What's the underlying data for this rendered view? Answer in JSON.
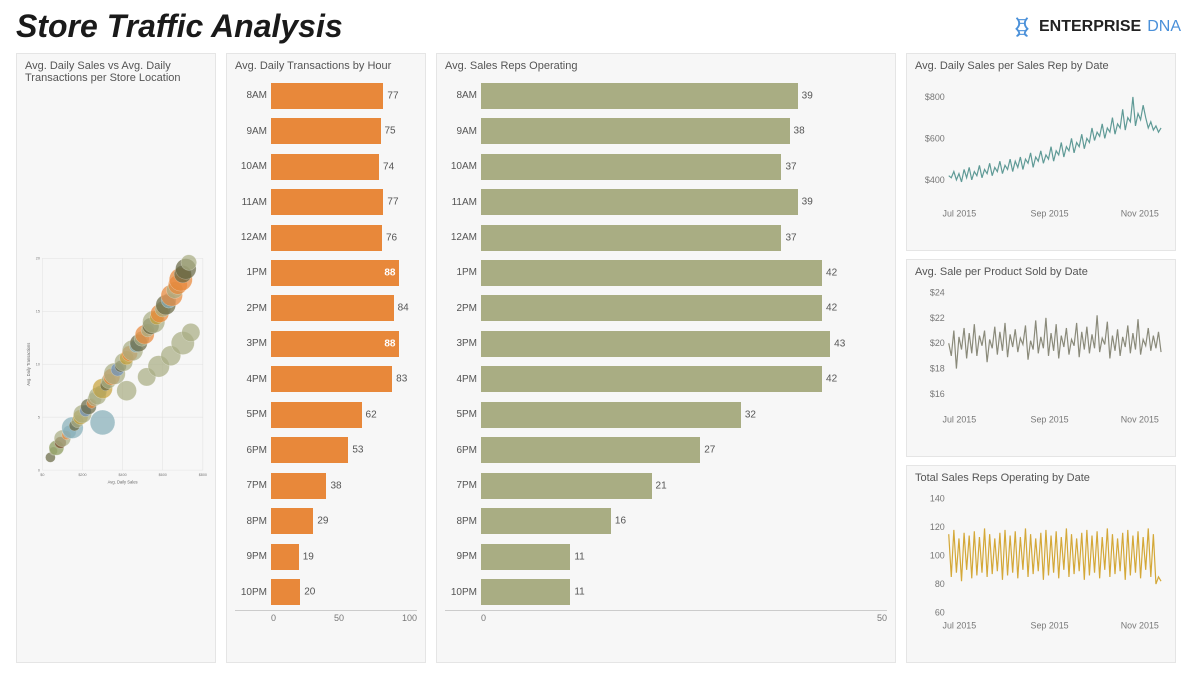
{
  "header": {
    "title": "Store Traffic Analysis",
    "logo_main": "ENTERPRISE",
    "logo_sub": "DNA",
    "logo_color": "#4a90d9"
  },
  "bar_transactions": {
    "title": "Avg. Daily Transactions by Hour",
    "type": "horizontal-bar",
    "categories": [
      "8AM",
      "9AM",
      "10AM",
      "11AM",
      "12AM",
      "1PM",
      "2PM",
      "3PM",
      "4PM",
      "5PM",
      "6PM",
      "7PM",
      "8PM",
      "9PM",
      "10PM"
    ],
    "values": [
      77,
      75,
      74,
      77,
      76,
      88,
      84,
      88,
      83,
      62,
      53,
      38,
      29,
      19,
      20
    ],
    "bar_color": "#e8883a",
    "highlight_inside": [
      88
    ],
    "xlim": [
      0,
      100
    ],
    "xticks": [
      0,
      50,
      100
    ],
    "background_color": "#f7f7f7",
    "label_fontsize": 10
  },
  "bar_reps": {
    "title": "Avg. Sales Reps Operating",
    "type": "horizontal-bar",
    "categories": [
      "8AM",
      "9AM",
      "10AM",
      "11AM",
      "12AM",
      "1PM",
      "2PM",
      "3PM",
      "4PM",
      "5PM",
      "6PM",
      "7PM",
      "8PM",
      "9PM",
      "10PM"
    ],
    "values": [
      39,
      38,
      37,
      39,
      37,
      42,
      42,
      43,
      42,
      32,
      27,
      21,
      16,
      11,
      11
    ],
    "bar_color": "#a9ad83",
    "highlight_inside": [],
    "xlim": [
      0,
      50
    ],
    "xticks": [
      0,
      50
    ],
    "background_color": "#f7f7f7",
    "label_fontsize": 10
  },
  "scatter": {
    "title": "Avg. Daily Sales vs Avg. Daily Transactions per Store Location",
    "type": "bubble",
    "xlabel": "Avg. Daily Sales",
    "ylabel": "Avg. Daily Transactions",
    "xlim": [
      0,
      800
    ],
    "xticks": [
      0,
      200,
      400,
      600,
      800
    ],
    "xtick_labels": [
      "$0",
      "$200",
      "$400",
      "$600",
      "$800"
    ],
    "ylim": [
      0,
      20
    ],
    "yticks": [
      0,
      5,
      10,
      15,
      20
    ],
    "background_color": "#f7f7f7",
    "grid_color": "#dddddd",
    "fill_opacity": 0.72,
    "points": [
      {
        "x": 40,
        "y": 1.2,
        "r": 12,
        "c": "#6a6a45"
      },
      {
        "x": 55,
        "y": 1.8,
        "r": 10,
        "c": "#a9ad83"
      },
      {
        "x": 70,
        "y": 2.1,
        "r": 18,
        "c": "#8a9a5b"
      },
      {
        "x": 90,
        "y": 2.6,
        "r": 14,
        "c": "#7a4c2e"
      },
      {
        "x": 100,
        "y": 3.0,
        "r": 20,
        "c": "#a9ad83"
      },
      {
        "x": 120,
        "y": 3.3,
        "r": 11,
        "c": "#e8883a"
      },
      {
        "x": 135,
        "y": 3.6,
        "r": 16,
        "c": "#87aeb8"
      },
      {
        "x": 150,
        "y": 4.0,
        "r": 26,
        "c": "#87aeb8"
      },
      {
        "x": 160,
        "y": 4.2,
        "r": 13,
        "c": "#6a6a45"
      },
      {
        "x": 175,
        "y": 4.6,
        "r": 15,
        "c": "#a9ad83"
      },
      {
        "x": 190,
        "y": 5.0,
        "r": 18,
        "c": "#c8a23c"
      },
      {
        "x": 200,
        "y": 5.3,
        "r": 22,
        "c": "#a9ad83"
      },
      {
        "x": 215,
        "y": 5.6,
        "r": 14,
        "c": "#7090b8"
      },
      {
        "x": 230,
        "y": 6.0,
        "r": 19,
        "c": "#6a6a45"
      },
      {
        "x": 245,
        "y": 6.3,
        "r": 12,
        "c": "#e8883a"
      },
      {
        "x": 260,
        "y": 6.7,
        "r": 17,
        "c": "#a9ad83"
      },
      {
        "x": 275,
        "y": 7.0,
        "r": 21,
        "c": "#a9ad83"
      },
      {
        "x": 290,
        "y": 7.4,
        "r": 15,
        "c": "#87aeb8"
      },
      {
        "x": 300,
        "y": 7.7,
        "r": 24,
        "c": "#c8a23c"
      },
      {
        "x": 315,
        "y": 8.0,
        "r": 13,
        "c": "#6a6a45"
      },
      {
        "x": 330,
        "y": 8.4,
        "r": 18,
        "c": "#a9ad83"
      },
      {
        "x": 345,
        "y": 8.8,
        "r": 20,
        "c": "#e8883a"
      },
      {
        "x": 360,
        "y": 9.1,
        "r": 26,
        "c": "#a9ad83"
      },
      {
        "x": 375,
        "y": 9.5,
        "r": 16,
        "c": "#7090b8"
      },
      {
        "x": 390,
        "y": 9.8,
        "r": 14,
        "c": "#6a6a45"
      },
      {
        "x": 405,
        "y": 10.2,
        "r": 22,
        "c": "#a9ad83"
      },
      {
        "x": 420,
        "y": 10.6,
        "r": 17,
        "c": "#c8a23c"
      },
      {
        "x": 435,
        "y": 11.0,
        "r": 19,
        "c": "#e8883a"
      },
      {
        "x": 450,
        "y": 11.3,
        "r": 25,
        "c": "#a9ad83"
      },
      {
        "x": 465,
        "y": 11.7,
        "r": 15,
        "c": "#87aeb8"
      },
      {
        "x": 480,
        "y": 12.0,
        "r": 21,
        "c": "#6a6a45"
      },
      {
        "x": 495,
        "y": 12.4,
        "r": 18,
        "c": "#a9ad83"
      },
      {
        "x": 510,
        "y": 12.8,
        "r": 23,
        "c": "#e8883a"
      },
      {
        "x": 525,
        "y": 13.2,
        "r": 16,
        "c": "#a9ad83"
      },
      {
        "x": 540,
        "y": 13.6,
        "r": 20,
        "c": "#6a6a45"
      },
      {
        "x": 555,
        "y": 14.0,
        "r": 27,
        "c": "#a9ad83"
      },
      {
        "x": 570,
        "y": 14.4,
        "r": 17,
        "c": "#c8a23c"
      },
      {
        "x": 585,
        "y": 14.8,
        "r": 22,
        "c": "#e8883a"
      },
      {
        "x": 600,
        "y": 15.2,
        "r": 19,
        "c": "#a9ad83"
      },
      {
        "x": 615,
        "y": 15.6,
        "r": 24,
        "c": "#6a6a45"
      },
      {
        "x": 630,
        "y": 16.0,
        "r": 18,
        "c": "#87aeb8"
      },
      {
        "x": 645,
        "y": 16.5,
        "r": 26,
        "c": "#e8883a"
      },
      {
        "x": 660,
        "y": 17.0,
        "r": 20,
        "c": "#a9ad83"
      },
      {
        "x": 675,
        "y": 17.5,
        "r": 23,
        "c": "#e8883a"
      },
      {
        "x": 690,
        "y": 18.0,
        "r": 28,
        "c": "#e8883a"
      },
      {
        "x": 700,
        "y": 18.5,
        "r": 21,
        "c": "#6a6a45"
      },
      {
        "x": 715,
        "y": 19.0,
        "r": 25,
        "c": "#6a6a45"
      },
      {
        "x": 730,
        "y": 19.6,
        "r": 19,
        "c": "#a9ad83"
      },
      {
        "x": 300,
        "y": 4.5,
        "r": 30,
        "c": "#87aeb8"
      },
      {
        "x": 420,
        "y": 7.5,
        "r": 24,
        "c": "#a9ad83"
      },
      {
        "x": 520,
        "y": 8.8,
        "r": 22,
        "c": "#a9ad83"
      },
      {
        "x": 580,
        "y": 9.8,
        "r": 26,
        "c": "#a9ad83"
      },
      {
        "x": 640,
        "y": 10.8,
        "r": 24,
        "c": "#a9ad83"
      },
      {
        "x": 700,
        "y": 12.0,
        "r": 28,
        "c": "#a9ad83"
      },
      {
        "x": 740,
        "y": 13.0,
        "r": 22,
        "c": "#a9ad83"
      }
    ]
  },
  "line_sales_rep": {
    "title": "Avg. Daily Sales per Sales Rep by Date",
    "type": "line",
    "color": "#5f9a96",
    "ylim": [
      300,
      850
    ],
    "ytick_labels": [
      "$400",
      "$600",
      "$800"
    ],
    "yticks": [
      400,
      600,
      800
    ],
    "xtick_labels": [
      "Jul 2015",
      "Sep 2015",
      "Nov 2015"
    ],
    "background_color": "#f7f7f7",
    "line_width": 1.2,
    "values": [
      420,
      410,
      440,
      400,
      430,
      390,
      450,
      410,
      460,
      400,
      440,
      420,
      470,
      410,
      450,
      430,
      480,
      420,
      460,
      440,
      490,
      430,
      470,
      450,
      500,
      440,
      490,
      460,
      510,
      450,
      500,
      480,
      530,
      460,
      510,
      490,
      540,
      480,
      520,
      500,
      560,
      490,
      540,
      520,
      580,
      510,
      560,
      540,
      600,
      530,
      580,
      560,
      620,
      550,
      600,
      580,
      650,
      590,
      630,
      610,
      670,
      600,
      650,
      630,
      700,
      620,
      670,
      650,
      740,
      640,
      700,
      680,
      800,
      660,
      720,
      690,
      760,
      700,
      650,
      680,
      640,
      660,
      630,
      650
    ]
  },
  "line_product": {
    "title": "Avg. Sale per Product Sold by Date",
    "type": "line",
    "color": "#8a8a7a",
    "ylim": [
      15,
      24
    ],
    "ytick_labels": [
      "$16",
      "$18",
      "$20",
      "$22",
      "$24"
    ],
    "yticks": [
      16,
      18,
      20,
      22,
      24
    ],
    "xtick_labels": [
      "Jul 2015",
      "Sep 2015",
      "Nov 2015"
    ],
    "background_color": "#f7f7f7",
    "line_width": 1.2,
    "values": [
      20,
      19,
      21,
      18,
      20.5,
      19.5,
      21.2,
      18.8,
      20.8,
      19.2,
      21.5,
      19,
      20.6,
      19.8,
      21,
      18.5,
      20.3,
      19.6,
      21.3,
      19.1,
      20.9,
      19.4,
      21.6,
      18.9,
      20.7,
      19.7,
      21.1,
      19.3,
      20.4,
      19.9,
      21.4,
      18.7,
      20.2,
      19.5,
      21.8,
      19.2,
      20.5,
      19.6,
      22,
      19,
      20.8,
      19.4,
      21.5,
      18.8,
      20.6,
      19.7,
      21.2,
      19.1,
      20.3,
      19.8,
      21.6,
      18.9,
      20.9,
      19.5,
      21.3,
      19.2,
      20.7,
      19.6,
      22.2,
      19.3,
      20.4,
      19.9,
      21.7,
      18.8,
      20.6,
      19.4,
      21.1,
      19,
      20.5,
      19.7,
      21.4,
      19.2,
      20.8,
      19.5,
      21.9,
      19.1,
      20.3,
      19.8,
      21.2,
      19.4,
      20.6,
      19.6,
      20.9,
      19.3
    ]
  },
  "line_total_reps": {
    "title": "Total Sales Reps Operating by Date",
    "type": "line",
    "color": "#d4a838",
    "ylim": [
      60,
      140
    ],
    "ytick_labels": [
      "60",
      "80",
      "100",
      "120",
      "140"
    ],
    "yticks": [
      60,
      80,
      100,
      120,
      140
    ],
    "xtick_labels": [
      "Jul 2015",
      "Sep 2015",
      "Nov 2015"
    ],
    "background_color": "#f7f7f7",
    "line_width": 1.2,
    "values": [
      115,
      85,
      118,
      88,
      112,
      82,
      116,
      90,
      114,
      84,
      117,
      86,
      113,
      88,
      119,
      85,
      115,
      87,
      112,
      89,
      116,
      83,
      118,
      86,
      114,
      88,
      117,
      84,
      113,
      90,
      119,
      85,
      115,
      87,
      112,
      89,
      116,
      83,
      118,
      86,
      114,
      88,
      117,
      84,
      113,
      90,
      119,
      85,
      115,
      87,
      112,
      89,
      116,
      83,
      118,
      86,
      114,
      88,
      117,
      84,
      113,
      90,
      119,
      85,
      115,
      87,
      112,
      89,
      116,
      83,
      118,
      86,
      114,
      88,
      117,
      84,
      113,
      90,
      119,
      85,
      115,
      80,
      85,
      82
    ]
  }
}
